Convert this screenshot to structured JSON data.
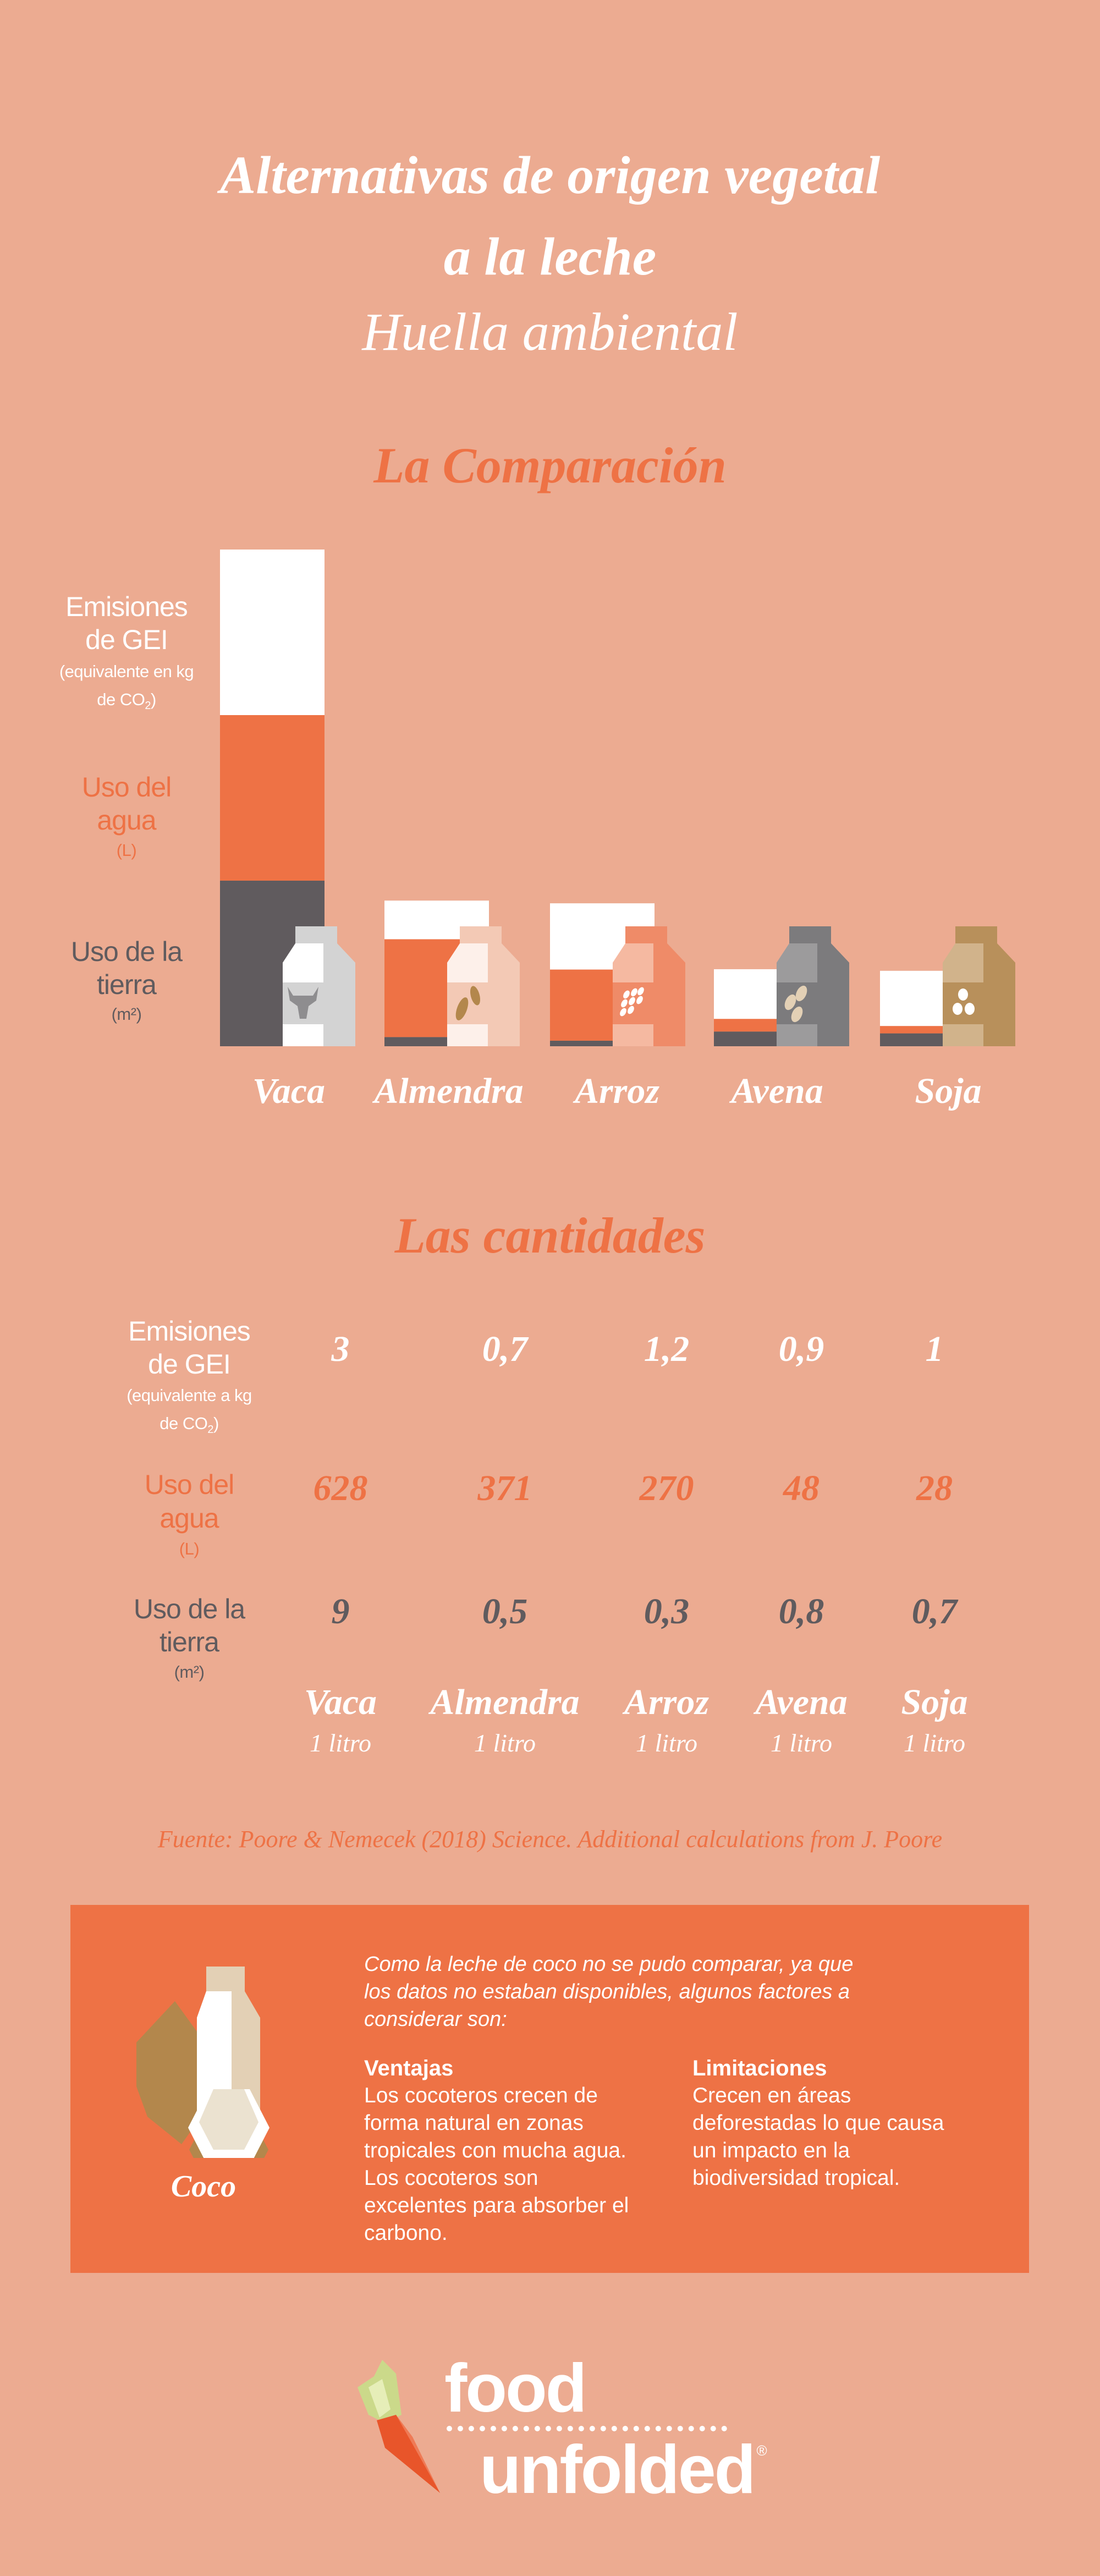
{
  "header": {
    "title_line1": "Alternativas de origen vegetal",
    "title_line2": "a la leche",
    "subtitle": "Huella ambiental"
  },
  "comparison": {
    "heading": "La Comparación",
    "labels": {
      "ghg": {
        "line1": "Emisiones",
        "line2": "de GEI",
        "unit1": "(equivalente en kg",
        "unit2": "de CO",
        "unit_sub": "2",
        "unit_close": ")"
      },
      "water": {
        "line1": "Uso del",
        "line2": "agua",
        "unit": "(L)"
      },
      "land": {
        "line1": "Uso de la",
        "line2": "tierra",
        "unit": "(m²)"
      }
    }
  },
  "chart_data": {
    "type": "bar",
    "stacked": true,
    "normalized_to": "Vaca",
    "categories": [
      "Vaca",
      "Almendra",
      "Arroz",
      "Avena",
      "Soja"
    ],
    "series": [
      {
        "name": "Uso de la tierra (m²)",
        "values": [
          9,
          0.5,
          0.3,
          0.8,
          0.7
        ],
        "color": "#605b5e"
      },
      {
        "name": "Uso del agua (L)",
        "values": [
          628,
          371,
          270,
          48,
          28
        ],
        "color": "#ee7245"
      },
      {
        "name": "Emisiones de GEI (equivalente en kg de CO2)",
        "values": [
          3,
          0.7,
          1.2,
          0.9,
          1
        ],
        "color": "#ffffff"
      }
    ],
    "grid": false,
    "legend": "left"
  },
  "quantities": {
    "heading": "Las cantidades",
    "labels": {
      "ghg": {
        "line1": "Emisiones",
        "line2": "de GEI",
        "unit1": "(equivalente a kg",
        "unit2": "de CO",
        "unit_sub": "2",
        "unit_close": ")"
      },
      "water": {
        "line1": "Uso del",
        "line2": "agua",
        "unit": "(L)"
      },
      "land": {
        "line1": "Uso de la",
        "line2": "tierra",
        "unit": "(m²)"
      }
    },
    "ghg_values": [
      "3",
      "0,7",
      "1,2",
      "0,9",
      "1"
    ],
    "water_values": [
      "628",
      "371",
      "270",
      "48",
      "28"
    ],
    "land_values": [
      "9",
      "0,5",
      "0,3",
      "0,8",
      "0,7"
    ],
    "names": [
      "Vaca",
      "Almendra",
      "Arroz",
      "Avena",
      "Soja"
    ],
    "per": [
      "1 litro",
      "1 litro",
      "1 litro",
      "1 litro",
      "1 litro"
    ],
    "source": "Fuente: Poore & Nemecek (2018) Science. Additional calculations from J. Poore"
  },
  "coconut": {
    "label": "Coco",
    "intro": [
      "Como la leche de coco no se pudo comparar, ya que",
      "los datos no estaban disponibles, algunos factores a",
      "considerar son:"
    ],
    "advantages": {
      "title": "Ventajas",
      "lines": [
        "Los cocoteros crecen de",
        "forma natural en zonas",
        "tropicales con mucha agua.",
        "Los cocoteros son",
        "excelentes para absorber el",
        "carbono."
      ]
    },
    "limitations": {
      "title": "Limitaciones",
      "lines": [
        "Crecen en áreas",
        "deforestadas lo que causa",
        "un impacto en la",
        "biodiversidad tropical."
      ]
    }
  },
  "logo": {
    "line1": "food",
    "line2": "unfolded",
    "mark": "®"
  },
  "colors": {
    "background": "#ecab91",
    "accent": "#ee7245",
    "dark": "#605b5e",
    "white": "#ffffff"
  },
  "cartons": [
    {
      "name": "Vaca",
      "cap": "#d3d3d3",
      "left": "#ffffff",
      "right": "#d3d3d3",
      "icon": "cow-head-icon"
    },
    {
      "name": "Almendra",
      "cap": "#f3c9b5",
      "left": "#fdf0ea",
      "right": "#f3c9b5",
      "icon": "almond-icon"
    },
    {
      "name": "Arroz",
      "cap": "#ef8b68",
      "left": "#f5b9a1",
      "right": "#ef8b68",
      "icon": "rice-icon"
    },
    {
      "name": "Avena",
      "cap": "#7c7b7d",
      "left": "#9c9b9c",
      "right": "#7c7b7d",
      "icon": "oat-icon"
    },
    {
      "name": "Soja",
      "cap": "#b8905b",
      "left": "#d1b38b",
      "right": "#b8905b",
      "icon": "soy-icon"
    }
  ]
}
